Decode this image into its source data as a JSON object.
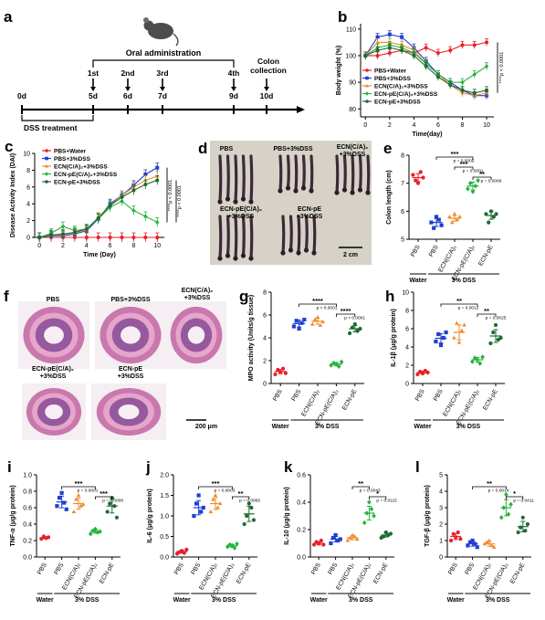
{
  "colors": {
    "pbs_water": "#e8202a",
    "pbs_dss": "#1f3fd1",
    "ecn_ca": "#f08c2e",
    "ecn_pe_ca": "#27b33c",
    "ecn_pe": "#1d6b32",
    "axis": "#000000",
    "photo_bg": "#d6d2c8",
    "tissue_pink": "#c978ad",
    "tissue_purple": "#7b3f8e"
  },
  "panel_a": {
    "letter": "a",
    "days": [
      "0d",
      "5d",
      "6d",
      "7d",
      "9d",
      "10d"
    ],
    "ordinals": [
      "1st",
      "2nd",
      "3rd",
      "4th"
    ],
    "oral_label": "Oral administration",
    "colon_label": "Colon\ncollection",
    "dss_label": "DSS treatment",
    "icon": "mouse-icon"
  },
  "chart_data": [
    {
      "id": "b",
      "letter": "b",
      "type": "line",
      "xlabel": "Time(day)",
      "ylabel": "Body weight (%)",
      "xlim": [
        -0.4,
        10.6
      ],
      "ylim": [
        77,
        112
      ],
      "xticks": [
        0,
        2,
        4,
        6,
        8,
        10
      ],
      "yticks": [
        80,
        90,
        100,
        110
      ],
      "x": [
        0,
        1,
        2,
        3,
        4,
        5,
        6,
        7,
        8,
        9,
        10
      ],
      "legend_position": "bottom-left",
      "annotation": "****p < 0.0001",
      "series": [
        {
          "name": "PBS+Water",
          "color_key": "pbs_water",
          "marker": "circle",
          "values": [
            100,
            100,
            101,
            102,
            101,
            103,
            101,
            102,
            104,
            104,
            105
          ]
        },
        {
          "name": "PBS+3%DSS",
          "color_key": "pbs_dss",
          "marker": "square",
          "values": [
            100,
            107,
            108,
            107,
            103,
            98,
            93,
            90,
            87,
            85,
            85
          ]
        },
        {
          "name": "ECN(C/A)₂+3%DSS",
          "color_key": "ecn_ca",
          "marker": "triangle",
          "values": [
            100,
            105,
            105,
            104,
            102,
            97,
            93,
            89,
            86,
            85,
            86
          ]
        },
        {
          "name": "ECN-pE(C/A)₂+3%DSS",
          "color_key": "ecn_pe_ca",
          "marker": "diamond",
          "values": [
            100,
            103,
            104,
            103,
            101,
            97,
            93,
            90,
            90,
            93,
            96
          ]
        },
        {
          "name": "ECN-pE+3%DSS",
          "color_key": "ecn_pe",
          "marker": "circle",
          "values": [
            100,
            102,
            103,
            102,
            100,
            96,
            92,
            89,
            87,
            86,
            87
          ]
        }
      ]
    },
    {
      "id": "c",
      "letter": "c",
      "type": "line",
      "xlabel": "Time (Day)",
      "ylabel": "Disease Activity Index (DAI)",
      "xlim": [
        -0.4,
        10.6
      ],
      "ylim": [
        0,
        10
      ],
      "xticks": [
        0,
        2,
        4,
        6,
        8,
        10
      ],
      "yticks": [
        0,
        2,
        4,
        6,
        8,
        10
      ],
      "x": [
        0,
        1,
        2,
        3,
        4,
        5,
        6,
        7,
        8,
        9,
        10
      ],
      "legend_position": "top-left",
      "annotations": [
        "****p < 0.0001",
        "****p < 0.0001"
      ],
      "series": [
        {
          "name": "PBS+Water",
          "color_key": "pbs_water",
          "marker": "circle",
          "values": [
            0,
            0,
            0,
            0,
            0,
            0,
            0,
            0,
            0,
            0,
            0
          ]
        },
        {
          "name": "PBS+3%DSS",
          "color_key": "pbs_dss",
          "marker": "square",
          "values": [
            0,
            0.2,
            0.2,
            0.4,
            0.8,
            2.2,
            4.0,
            5.0,
            6.2,
            7.5,
            8.3
          ]
        },
        {
          "name": "ECN(C/A)₂+3%DSS",
          "color_key": "ecn_ca",
          "marker": "triangle",
          "values": [
            0,
            0.3,
            0.3,
            0.5,
            0.9,
            2.4,
            3.8,
            5.0,
            6.0,
            6.8,
            7.3
          ]
        },
        {
          "name": "ECN-pE(C/A)₂+3%DSS",
          "color_key": "ecn_pe_ca",
          "marker": "diamond",
          "values": [
            0,
            0.5,
            1.3,
            0.8,
            1.0,
            2.2,
            3.6,
            4.3,
            3.2,
            2.5,
            1.8
          ]
        },
        {
          "name": "ECN-pE+3%DSS",
          "color_key": "ecn_pe",
          "marker": "circle",
          "values": [
            0,
            0.3,
            0.4,
            0.6,
            1.0,
            2.3,
            3.8,
            4.8,
            5.6,
            6.3,
            6.8
          ]
        }
      ]
    },
    {
      "id": "e",
      "letter": "e",
      "type": "scatter",
      "ylabel": "Colon length (cm)",
      "ylim": [
        5,
        8
      ],
      "yticks": [
        5,
        6,
        7,
        8
      ],
      "categories": [
        "PBS",
        "PBS",
        "ECN(C/A)₂",
        "ECN-pE(C/A)₂",
        "ECN-pE"
      ],
      "group_labels": [
        "Water",
        "3% DSS"
      ],
      "points": [
        [
          7.3,
          7.1,
          7.0,
          7.4,
          7.2
        ],
        [
          5.6,
          5.4,
          5.8,
          5.7,
          5.5
        ],
        [
          5.8,
          5.6,
          5.9,
          5.7,
          5.8
        ],
        [
          6.8,
          7.0,
          6.7,
          6.9,
          7.1
        ],
        [
          5.9,
          5.6,
          6.0,
          5.8,
          5.9
        ]
      ],
      "means": [
        7.2,
        5.6,
        5.75,
        6.9,
        5.85
      ],
      "brackets": [
        {
          "from": 1,
          "to": 3,
          "stars": "***",
          "p": "p = 0.0005",
          "level": 3
        },
        {
          "from": 2,
          "to": 3,
          "stars": "***",
          "p": "p = 0.0001",
          "level": 2
        },
        {
          "from": 3,
          "to": 4,
          "stars": "**",
          "p": "p = 0.0066",
          "level": 1
        }
      ]
    },
    {
      "id": "g",
      "letter": "g",
      "type": "scatter",
      "ylabel": "MPO activity (Units/g tissue)",
      "ylim": [
        0,
        8
      ],
      "yticks": [
        0,
        2,
        4,
        6,
        8
      ],
      "categories": [
        "PBS",
        "PBS",
        "ECN(C/A)₂",
        "ECN-pE(C/A)₂",
        "ECN-pE"
      ],
      "group_labels": [
        "Water",
        "3% DSS"
      ],
      "points": [
        [
          0.8,
          1.2,
          1.0,
          1.3,
          0.9
        ],
        [
          5.0,
          5.5,
          4.8,
          5.3,
          5.6
        ],
        [
          5.2,
          5.6,
          5.8,
          5.1,
          5.4
        ],
        [
          1.6,
          1.8,
          1.7,
          1.5,
          1.9
        ],
        [
          4.4,
          4.9,
          5.2,
          4.6,
          4.8
        ]
      ],
      "means": [
        1.05,
        5.25,
        5.45,
        1.7,
        4.8
      ],
      "brackets": [
        {
          "from": 1,
          "to": 3,
          "stars": "****",
          "p": "p < 0.0001",
          "level": 2
        },
        {
          "from": 3,
          "to": 4,
          "stars": "****",
          "p": "p < 0.0001",
          "level": 1
        }
      ]
    },
    {
      "id": "h",
      "letter": "h",
      "type": "scatter",
      "ylabel": "IL-1β (μg/g protein)",
      "ylim": [
        0,
        10
      ],
      "yticks": [
        0,
        2,
        4,
        6,
        8,
        10
      ],
      "categories": [
        "PBS",
        "PBS",
        "ECN(C/A)₂",
        "ECN-pE(C/A)₂",
        "ECN-pE"
      ],
      "group_labels": [
        "Water",
        "3% DSS"
      ],
      "points": [
        [
          1.0,
          1.3,
          1.1,
          1.4,
          1.2
        ],
        [
          4.6,
          5.4,
          4.2,
          5.0,
          5.6
        ],
        [
          5.0,
          6.6,
          4.5,
          5.8,
          6.4
        ],
        [
          2.4,
          2.8,
          2.6,
          2.2,
          2.9
        ],
        [
          4.4,
          5.6,
          6.4,
          4.8,
          5.0
        ]
      ],
      "means": [
        1.2,
        4.95,
        5.6,
        2.6,
        5.2
      ],
      "brackets": [
        {
          "from": 1,
          "to": 3,
          "stars": "**",
          "p": "p = 0.0012",
          "level": 2
        },
        {
          "from": 3,
          "to": 4,
          "stars": "**",
          "p": "p = 0.0025",
          "level": 1
        }
      ]
    },
    {
      "id": "i",
      "letter": "i",
      "type": "scatter",
      "ylabel": "TNF-α (μg/g protein)",
      "ylim": [
        0,
        1.0
      ],
      "yticks": [
        0.0,
        0.2,
        0.4,
        0.6,
        0.8,
        1.0
      ],
      "categories": [
        "PBS",
        "PBS",
        "ECN(C/A)₂",
        "ECN-pE(C/A)₂",
        "ECN-pE"
      ],
      "group_labels": [
        "Water",
        "3% DSS"
      ],
      "points": [
        [
          0.22,
          0.25,
          0.23,
          0.24
        ],
        [
          0.62,
          0.72,
          0.78,
          0.66,
          0.58
        ],
        [
          0.55,
          0.7,
          0.75,
          0.62,
          0.64
        ],
        [
          0.28,
          0.32,
          0.34,
          0.3,
          0.31
        ],
        [
          0.55,
          0.65,
          0.72,
          0.62,
          0.48
        ]
      ],
      "means": [
        0.235,
        0.67,
        0.65,
        0.31,
        0.62
      ],
      "brackets": [
        {
          "from": 1,
          "to": 3,
          "stars": "***",
          "p": "p = 0.0001",
          "level": 2
        },
        {
          "from": 3,
          "to": 4,
          "stars": "***",
          "p": "p = 0.0008",
          "level": 1
        }
      ]
    },
    {
      "id": "j",
      "letter": "j",
      "type": "scatter",
      "ylabel": "IL-6 (μg/g protein)",
      "ylim": [
        0,
        2.0
      ],
      "yticks": [
        0.0,
        0.5,
        1.0,
        1.5,
        2.0
      ],
      "categories": [
        "PBS",
        "PBS",
        "ECN(C/A)₂",
        "ECN-pE(C/A)₂",
        "ECN-pE"
      ],
      "group_labels": [
        "Water",
        "3% DSS"
      ],
      "points": [
        [
          0.08,
          0.12,
          0.15,
          0.1,
          0.18
        ],
        [
          1.0,
          1.3,
          1.5,
          1.1,
          1.2
        ],
        [
          1.1,
          1.4,
          1.5,
          1.2,
          1.3
        ],
        [
          0.25,
          0.3,
          0.28,
          0.22,
          0.32
        ],
        [
          0.8,
          1.0,
          1.3,
          1.2,
          0.9
        ]
      ],
      "means": [
        0.13,
        1.2,
        1.3,
        0.27,
        1.05
      ],
      "brackets": [
        {
          "from": 1,
          "to": 3,
          "stars": "***",
          "p": "p = 0.0003",
          "level": 2
        },
        {
          "from": 3,
          "to": 4,
          "stars": "**",
          "p": "p = 0.0065",
          "level": 1
        }
      ]
    },
    {
      "id": "k",
      "letter": "k",
      "type": "scatter",
      "ylabel": "IL-10 (μg/g protein)",
      "ylim": [
        0,
        0.6
      ],
      "yticks": [
        0.0,
        0.2,
        0.4,
        0.6
      ],
      "categories": [
        "PBS",
        "PBS",
        "ECN(C/A)₂",
        "ECN-pE(C/A)₂",
        "ECN-pE"
      ],
      "group_labels": [
        "Water",
        "3% DSS"
      ],
      "points": [
        [
          0.09,
          0.11,
          0.1,
          0.12,
          0.09
        ],
        [
          0.1,
          0.14,
          0.16,
          0.12,
          0.13
        ],
        [
          0.12,
          0.14,
          0.16,
          0.15,
          0.13
        ],
        [
          0.25,
          0.32,
          0.4,
          0.35,
          0.3
        ],
        [
          0.14,
          0.15,
          0.18,
          0.16,
          0.17
        ]
      ],
      "means": [
        0.1,
        0.13,
        0.14,
        0.32,
        0.16
      ],
      "brackets": [
        {
          "from": 2,
          "to": 3,
          "stars": "**",
          "p": "p = 0.0043",
          "level": 2
        },
        {
          "from": 3,
          "to": 4,
          "stars": "*",
          "p": "p = 0.0115",
          "level": 1
        }
      ]
    },
    {
      "id": "l",
      "letter": "l",
      "type": "scatter",
      "ylabel": "TGF-β (μg/g protein)",
      "ylim": [
        0,
        5
      ],
      "yticks": [
        0,
        1,
        2,
        3,
        4,
        5
      ],
      "categories": [
        "PBS",
        "PBS",
        "ECN(C/A)₂",
        "ECN-pE(C/A)₂",
        "ECN-pE"
      ],
      "group_labels": [
        "Water",
        "3% DSS"
      ],
      "points": [
        [
          1.0,
          1.4,
          1.2,
          1.5,
          1.1
        ],
        [
          0.7,
          0.9,
          1.0,
          0.8,
          0.6
        ],
        [
          0.8,
          0.9,
          1.0,
          0.7,
          0.6
        ],
        [
          2.4,
          3.0,
          3.8,
          2.6,
          3.2
        ],
        [
          1.5,
          1.8,
          2.4,
          1.6,
          2.0
        ]
      ],
      "means": [
        1.25,
        0.8,
        0.8,
        3.0,
        1.85
      ],
      "brackets": [
        {
          "from": 1,
          "to": 3,
          "stars": "**",
          "p": "p = 0.0014",
          "level": 2
        },
        {
          "from": 3,
          "to": 4,
          "stars": "*",
          "p": "p = 0.0411",
          "level": 1
        }
      ]
    }
  ],
  "panel_d": {
    "letter": "d",
    "labels": [
      "PBS",
      "PBS+3%DSS",
      "ECN(C/A)₂\n+3%DSS",
      "ECN-pE(C/A)₂\n+3%DSS",
      "ECN-pE\n+3%DSS"
    ],
    "scale": "2 cm"
  },
  "panel_f": {
    "letter": "f",
    "labels": [
      "PBS",
      "PBS+3%DSS",
      "ECN(C/A)₂\n+3%DSS",
      "ECN-pE(C/A)₂\n+3%DSS",
      "ECN-pE\n+3%DSS"
    ],
    "scale": "200 μm"
  }
}
